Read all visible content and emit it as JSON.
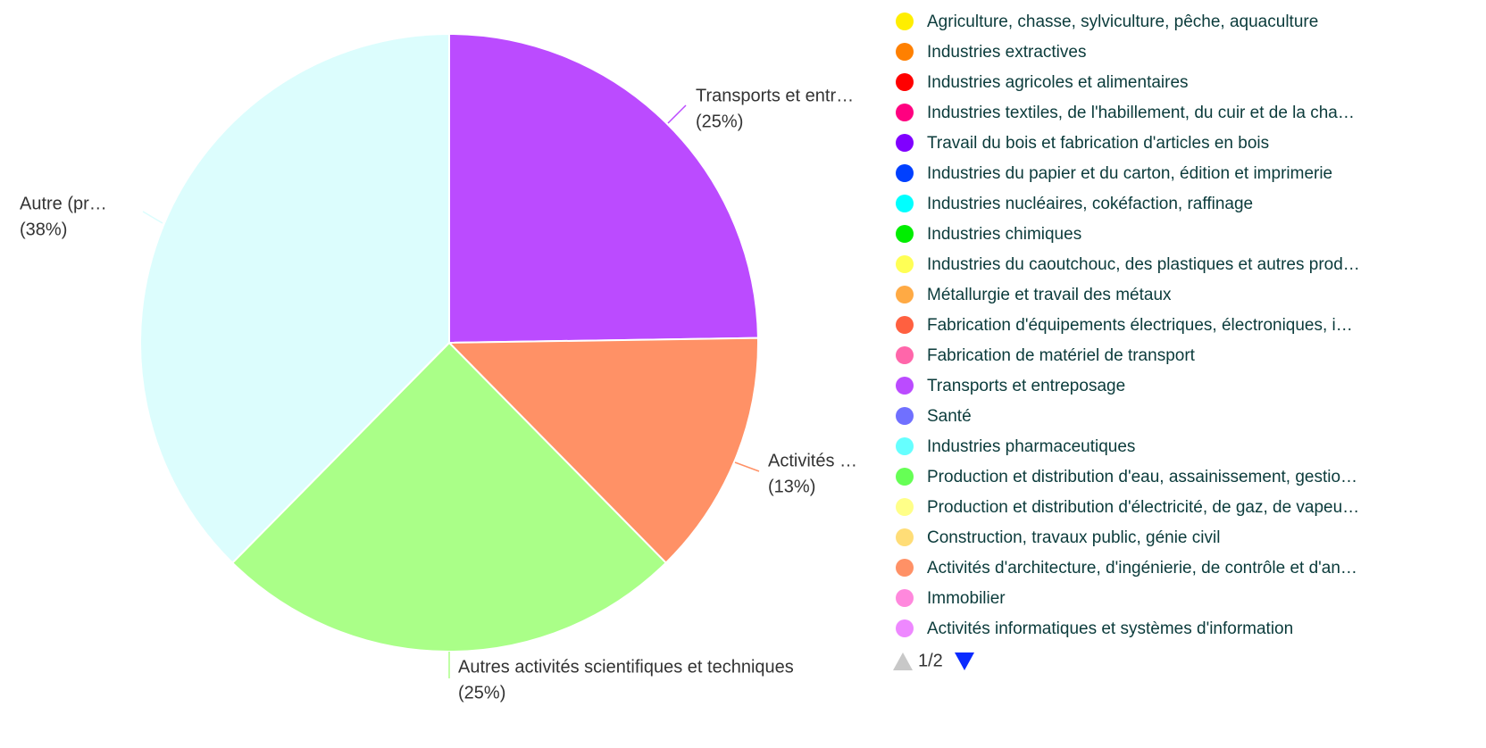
{
  "chart_data": {
    "type": "pie",
    "categories": [
      "Transports et entr…",
      "Activités …",
      "Autres activités scientifiques et techniques",
      "Autre (pr…"
    ],
    "values": [
      25,
      13,
      25,
      38
    ],
    "value_labels": [
      "(25%)",
      "(13%)",
      "(25%)",
      "(38%)"
    ],
    "colors": [
      "#bb4bff",
      "#ff9166",
      "#aaff88",
      "#dcfdfd"
    ],
    "legend": [
      {
        "name": "Agriculture, chasse, sylviculture, pêche, aquaculture",
        "color": "#ffee00"
      },
      {
        "name": "Industries extractives",
        "color": "#ff8000"
      },
      {
        "name": "Industries agricoles et alimentaires",
        "color": "#ff0000"
      },
      {
        "name": "Industries textiles, de l'habillement, du cuir et de la cha…",
        "color": "#ff0080"
      },
      {
        "name": "Travail du bois et fabrication d'articles en bois",
        "color": "#8000ff"
      },
      {
        "name": "Industries du papier et du carton, édition et imprimerie",
        "color": "#0040ff"
      },
      {
        "name": "Industries nucléaires, cokéfaction, raffinage",
        "color": "#00ffff"
      },
      {
        "name": "Industries chimiques",
        "color": "#00ee00"
      },
      {
        "name": "Industries du caoutchouc, des plastiques et autres prod…",
        "color": "#ffff55"
      },
      {
        "name": "Métallurgie et travail des métaux",
        "color": "#ffaa44"
      },
      {
        "name": "Fabrication d'équipements électriques, électroniques, i…",
        "color": "#ff6040"
      },
      {
        "name": "Fabrication de matériel de transport",
        "color": "#ff66aa"
      },
      {
        "name": "Transports et entreposage",
        "color": "#bb4bff"
      },
      {
        "name": "Santé",
        "color": "#7070ff"
      },
      {
        "name": "Industries pharmaceutiques",
        "color": "#66ffff"
      },
      {
        "name": "Production et distribution d'eau, assainissement, gestio…",
        "color": "#66ff55"
      },
      {
        "name": "Production et distribution d'électricité, de gaz, de vapeu…",
        "color": "#ffff88"
      },
      {
        "name": "Construction, travaux public, génie civil",
        "color": "#ffdd77"
      },
      {
        "name": "Activités d'architecture, d'ingénierie, de contrôle et d'an…",
        "color": "#ff9166"
      },
      {
        "name": "Immobilier",
        "color": "#ff88dd"
      },
      {
        "name": "Activités informatiques et systèmes d'information",
        "color": "#ee88ff"
      }
    ],
    "legend_page": "1/2"
  }
}
